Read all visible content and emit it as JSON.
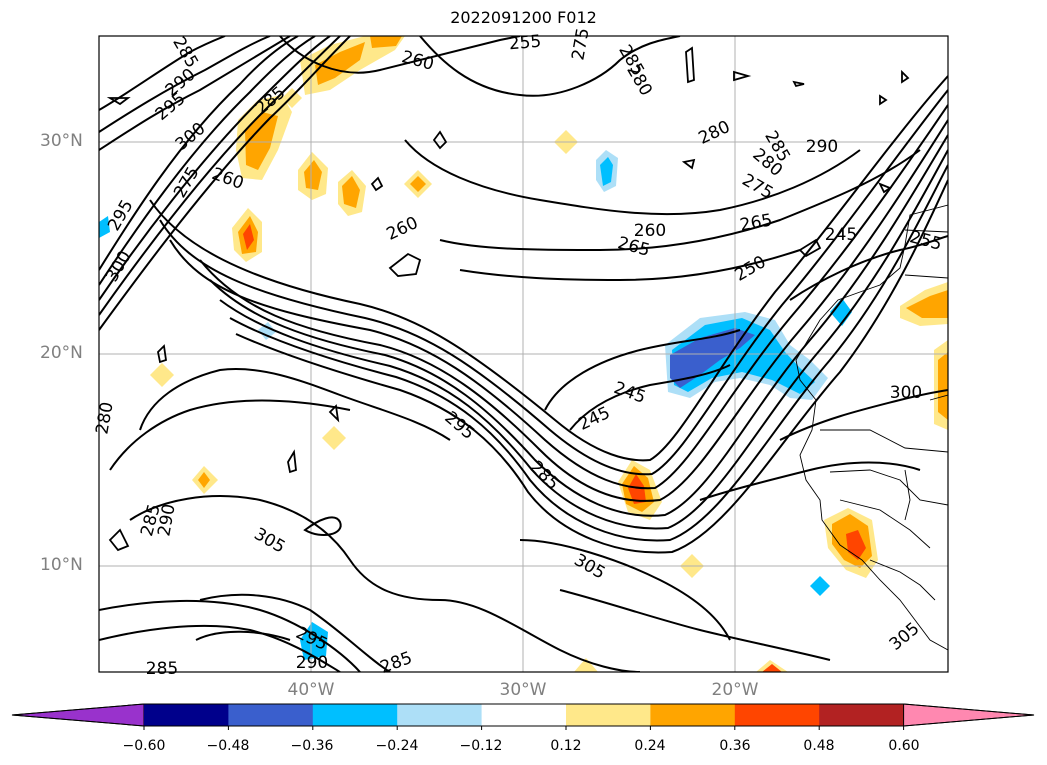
{
  "title": "2022091200 F012",
  "map": {
    "lat_labels": [
      "30°N",
      "20°N",
      "10°N"
    ],
    "lon_labels": [
      "40°W",
      "30°W",
      "20°W"
    ],
    "gridlines": true
  },
  "contour_labels": [
    "285",
    "290",
    "295",
    "300",
    "255",
    "275",
    "285",
    "280",
    "260",
    "285",
    "280",
    "285",
    "280",
    "290",
    "275",
    "260",
    "295",
    "300",
    "260",
    "265",
    "260",
    "245",
    "265",
    "255",
    "250",
    "275",
    "245",
    "245",
    "295",
    "285",
    "290",
    "300",
    "280",
    "285",
    "305",
    "305",
    "295",
    "290",
    "285",
    "305",
    "285"
  ],
  "colorbar": {
    "ticks": [
      "−0.60",
      "−0.48",
      "−0.36",
      "−0.24",
      "−0.12",
      "0.12",
      "0.24",
      "0.36",
      "0.48",
      "0.60"
    ],
    "colors": [
      "#9932CC",
      "#00008B",
      "#3A5FCD",
      "#00BFFF",
      "#ADDFF7",
      "#FFFFFF",
      "#FFE88A",
      "#FFA500",
      "#FF4500",
      "#B22222",
      "#FF88B0"
    ],
    "extend": "both"
  }
}
